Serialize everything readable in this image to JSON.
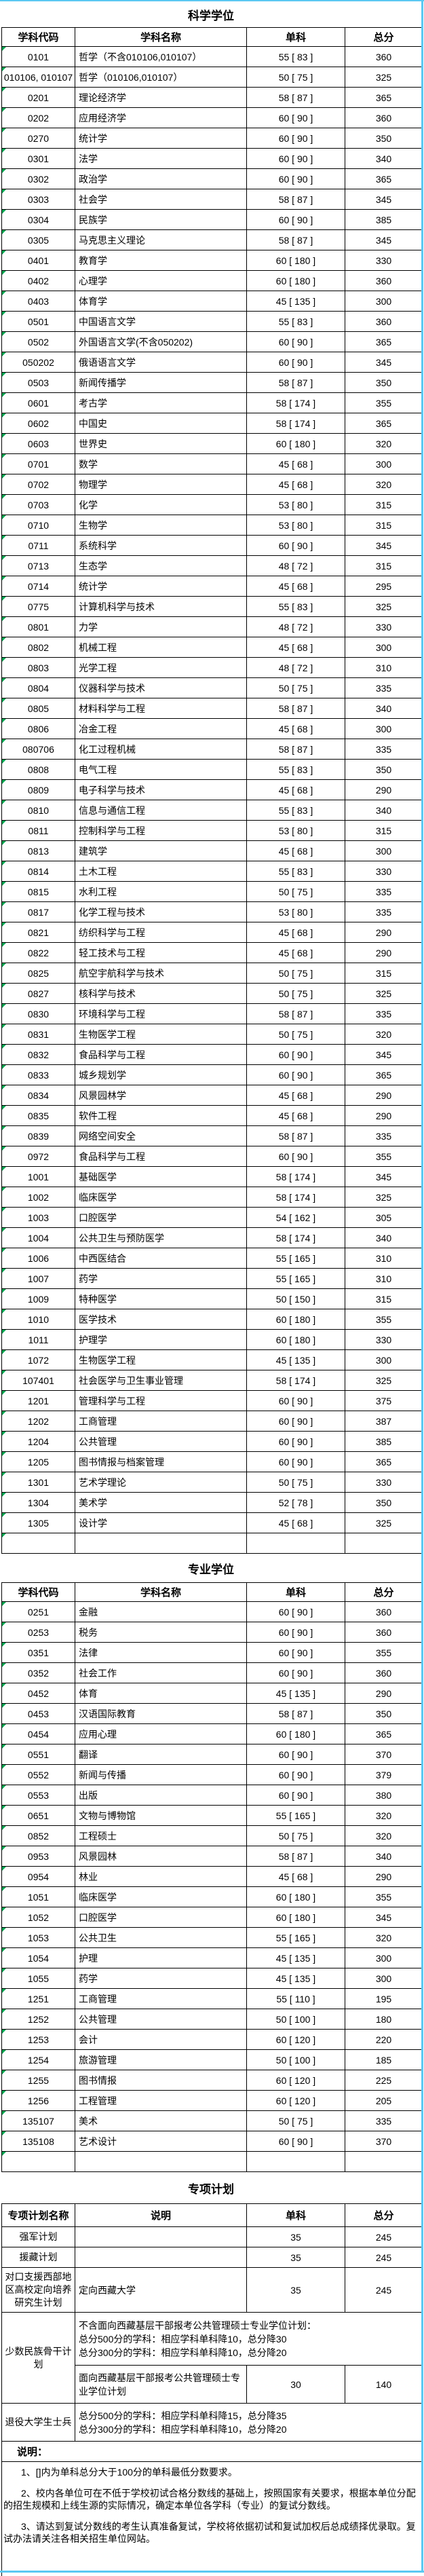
{
  "colors": {
    "accent_cyan": "#5bc8f2",
    "triangle_green": "#00a651"
  },
  "science": {
    "title": "科学学位",
    "headers": [
      "学科代码",
      "学科名称",
      "单科",
      "总分"
    ],
    "rows": [
      [
        "0101",
        "哲学（不含010106,010107）",
        "55 [ 83 ]",
        "360"
      ],
      [
        "010106, 010107",
        "哲学（010106,010107）",
        "50 [ 75 ]",
        "325"
      ],
      [
        "0201",
        "理论经济学",
        "58 [ 87 ]",
        "365"
      ],
      [
        "0202",
        "应用经济学",
        "60 [ 90 ]",
        "360"
      ],
      [
        "0270",
        "统计学",
        "60 [ 90 ]",
        "350"
      ],
      [
        "0301",
        "法学",
        "60 [ 90 ]",
        "340"
      ],
      [
        "0302",
        "政治学",
        "60 [ 90 ]",
        "365"
      ],
      [
        "0303",
        "社会学",
        "58 [ 87 ]",
        "345"
      ],
      [
        "0304",
        "民族学",
        "60 [ 90 ]",
        "385"
      ],
      [
        "0305",
        "马克思主义理论",
        "58 [ 87 ]",
        "345"
      ],
      [
        "0401",
        "教育学",
        "60 [ 180 ]",
        "330"
      ],
      [
        "0402",
        "心理学",
        "60 [ 180 ]",
        "360"
      ],
      [
        "0403",
        "体育学",
        "45 [ 135 ]",
        "300"
      ],
      [
        "0501",
        "中国语言文学",
        "55 [ 83 ]",
        "360"
      ],
      [
        "0502",
        "外国语言文学(不含050202)",
        "60 [ 90 ]",
        "365"
      ],
      [
        "050202",
        "俄语语言文学",
        "60 [ 90 ]",
        "345"
      ],
      [
        "0503",
        "新闻传播学",
        "58 [ 87 ]",
        "350"
      ],
      [
        "0601",
        "考古学",
        "58 [ 174 ]",
        "355"
      ],
      [
        "0602",
        "中国史",
        "58 [ 174 ]",
        "365"
      ],
      [
        "0603",
        "世界史",
        "60 [ 180 ]",
        "320"
      ],
      [
        "0701",
        "数学",
        "45 [ 68 ]",
        "300"
      ],
      [
        "0702",
        "物理学",
        "45 [ 68 ]",
        "320"
      ],
      [
        "0703",
        "化学",
        "53 [ 80 ]",
        "315"
      ],
      [
        "0710",
        "生物学",
        "53 [ 80 ]",
        "315"
      ],
      [
        "0711",
        "系统科学",
        "60 [ 90 ]",
        "345"
      ],
      [
        "0713",
        "生态学",
        "48 [ 72 ]",
        "315"
      ],
      [
        "0714",
        "统计学",
        "45 [ 68 ]",
        "295"
      ],
      [
        "0775",
        "计算机科学与技术",
        "55 [ 83 ]",
        "325"
      ],
      [
        "0801",
        "力学",
        "48 [ 72 ]",
        "330"
      ],
      [
        "0802",
        "机械工程",
        "45 [ 68 ]",
        "300"
      ],
      [
        "0803",
        "光学工程",
        "48 [ 72 ]",
        "310"
      ],
      [
        "0804",
        "仪器科学与技术",
        "50 [ 75 ]",
        "335"
      ],
      [
        "0805",
        "材料科学与工程",
        "58 [ 87 ]",
        "340"
      ],
      [
        "0806",
        "冶金工程",
        "45 [ 68 ]",
        "300"
      ],
      [
        "080706",
        "化工过程机械",
        "58 [ 87 ]",
        "335"
      ],
      [
        "0808",
        "电气工程",
        "55 [ 83 ]",
        "350"
      ],
      [
        "0809",
        "电子科学与技术",
        "45 [ 68 ]",
        "290"
      ],
      [
        "0810",
        "信息与通信工程",
        "55 [ 83 ]",
        "340"
      ],
      [
        "0811",
        "控制科学与工程",
        "53 [ 80 ]",
        "315"
      ],
      [
        "0813",
        "建筑学",
        "45 [ 68 ]",
        "300"
      ],
      [
        "0814",
        "土木工程",
        "55 [ 83 ]",
        "330"
      ],
      [
        "0815",
        "水利工程",
        "50 [ 75 ]",
        "335"
      ],
      [
        "0817",
        "化学工程与技术",
        "53 [ 80 ]",
        "335"
      ],
      [
        "0821",
        "纺织科学与工程",
        "45 [ 68 ]",
        "290"
      ],
      [
        "0822",
        "轻工技术与工程",
        "45 [ 68 ]",
        "290"
      ],
      [
        "0825",
        "航空宇航科学与技术",
        "50 [ 75 ]",
        "315"
      ],
      [
        "0827",
        "核科学与技术",
        "50 [ 75 ]",
        "325"
      ],
      [
        "0830",
        "环境科学与工程",
        "58 [ 87 ]",
        "335"
      ],
      [
        "0831",
        "生物医学工程",
        "50 [ 75 ]",
        "320"
      ],
      [
        "0832",
        "食品科学与工程",
        "60 [ 90 ]",
        "345"
      ],
      [
        "0833",
        "城乡规划学",
        "60 [ 90 ]",
        "365"
      ],
      [
        "0834",
        "风景园林学",
        "45 [ 68 ]",
        "290"
      ],
      [
        "0835",
        "软件工程",
        "45 [ 68 ]",
        "290"
      ],
      [
        "0839",
        "网络空间安全",
        "58 [ 87 ]",
        "335"
      ],
      [
        "0972",
        "食品科学与工程",
        "60 [ 90 ]",
        "355"
      ],
      [
        "1001",
        "基础医学",
        "58 [ 174 ]",
        "345"
      ],
      [
        "1002",
        "临床医学",
        "58 [ 174 ]",
        "325"
      ],
      [
        "1003",
        "口腔医学",
        "54 [ 162 ]",
        "305"
      ],
      [
        "1004",
        "公共卫生与预防医学",
        "58 [ 174 ]",
        "340"
      ],
      [
        "1006",
        "中西医结合",
        "55 [ 165 ]",
        "310"
      ],
      [
        "1007",
        "药学",
        "55 [ 165 ]",
        "310"
      ],
      [
        "1009",
        "特种医学",
        "50 [ 150 ]",
        "315"
      ],
      [
        "1010",
        "医学技术",
        "60 [ 180 ]",
        "355"
      ],
      [
        "1011",
        "护理学",
        "60 [ 180 ]",
        "330"
      ],
      [
        "1072",
        "生物医学工程",
        "45 [ 135 ]",
        "300"
      ],
      [
        "107401",
        "社会医学与卫生事业管理",
        "58 [ 174 ]",
        "325"
      ],
      [
        "1201",
        "管理科学与工程",
        "60 [ 90 ]",
        "375"
      ],
      [
        "1202",
        "工商管理",
        "60 [ 90 ]",
        "387"
      ],
      [
        "1204",
        "公共管理",
        "60 [ 90 ]",
        "385"
      ],
      [
        "1205",
        "图书情报与档案管理",
        "60 [ 90 ]",
        "365"
      ],
      [
        "1301",
        "艺术学理论",
        "50 [ 75 ]",
        "330"
      ],
      [
        "1304",
        "美术学",
        "52 [ 78 ]",
        "350"
      ],
      [
        "1305",
        "设计学",
        "45 [ 68 ]",
        "325"
      ],
      [
        "",
        "",
        "",
        ""
      ]
    ]
  },
  "professional": {
    "title": "专业学位",
    "headers": [
      "学科代码",
      "学科名称",
      "单科",
      "总分"
    ],
    "rows": [
      [
        "0251",
        "金融",
        "60 [ 90 ]",
        "360"
      ],
      [
        "0253",
        "税务",
        "60 [ 90 ]",
        "360"
      ],
      [
        "0351",
        "法律",
        "60 [ 90 ]",
        "355"
      ],
      [
        "0352",
        "社会工作",
        "60 [ 90 ]",
        "360"
      ],
      [
        "0452",
        "体育",
        "45 [ 135 ]",
        "290"
      ],
      [
        "0453",
        "汉语国际教育",
        "58 [ 87 ]",
        "350"
      ],
      [
        "0454",
        "应用心理",
        "60 [ 180 ]",
        "365"
      ],
      [
        "0551",
        "翻译",
        "60 [ 90 ]",
        "370"
      ],
      [
        "0552",
        "新闻与传播",
        "60 [ 90 ]",
        "379"
      ],
      [
        "0553",
        "出版",
        "60 [ 90 ]",
        "380"
      ],
      [
        "0651",
        "文物与博物馆",
        "55 [ 165 ]",
        "320"
      ],
      [
        "0852",
        "工程硕士",
        "50 [ 75 ]",
        "320"
      ],
      [
        "0953",
        "风景园林",
        "58 [ 87 ]",
        "340"
      ],
      [
        "0954",
        "林业",
        "45 [ 68 ]",
        "290"
      ],
      [
        "1051",
        "临床医学",
        "60 [ 180 ]",
        "355"
      ],
      [
        "1052",
        "口腔医学",
        "60 [ 180 ]",
        "345"
      ],
      [
        "1053",
        "公共卫生",
        "55 [ 165 ]",
        "320"
      ],
      [
        "1054",
        "护理",
        "45 [ 135 ]",
        "300"
      ],
      [
        "1055",
        "药学",
        "45 [ 135 ]",
        "300"
      ],
      [
        "1251",
        "工商管理",
        "55 [ 110 ]",
        "195"
      ],
      [
        "1252",
        "公共管理",
        "50 [ 100 ]",
        "180"
      ],
      [
        "1253",
        "会计",
        "60 [ 120 ]",
        "220"
      ],
      [
        "1254",
        "旅游管理",
        "50 [ 100 ]",
        "185"
      ],
      [
        "1255",
        "图书情报",
        "60 [ 120 ]",
        "225"
      ],
      [
        "1256",
        "工程管理",
        "60 [ 120 ]",
        "205"
      ],
      [
        "135107",
        "美术",
        "50 [ 75 ]",
        "335"
      ],
      [
        "135108",
        "艺术设计",
        "60 [ 90 ]",
        "370"
      ],
      [
        "",
        "",
        "",
        ""
      ]
    ]
  },
  "special": {
    "title": "专项计划",
    "headers": [
      "专项计划名称",
      "说明",
      "单科",
      "总分"
    ],
    "row_qiangjun": {
      "name": "强军计划",
      "desc": "",
      "danke": "35",
      "total": "245"
    },
    "row_yuanzang": {
      "name": "援藏计划",
      "desc": "",
      "danke": "35",
      "total": "245"
    },
    "row_duikou": {
      "name": "对口支援西部地区高校定向培养研究生计划",
      "desc": "定向西藏大学",
      "danke": "35",
      "total": "245"
    },
    "row_gugan": {
      "name": "少数民族骨干计划",
      "desc_main": "不含面向西藏基层干部报考公共管理硕士专业学位计划：\n总分500分的学科：相应学科单科降10，总分降30\n总分300分的学科：相应学科单科降10，总分降20",
      "desc_sub": "面向西藏基层干部报考公共管理硕士专业学位计划",
      "danke_sub": "30",
      "total_sub": "140"
    },
    "row_tuiyi": {
      "name": "退役大学生士兵",
      "desc": "总分500分的学科：相应学科单科降15，总分降35\n总分300分的学科：相应学科单科降10，总分降20"
    }
  },
  "notes": {
    "label": "说明：",
    "items": [
      "1、[]内为单科总分大于100分的单科最低分数要求。",
      "2、校内各单位可在不低于学校初试合格分数线的基础上，按照国家有关要求，根据本单位分配的招生规模和上线生源的实际情况，确定本单位各学科（专业）的复试分数线。",
      "3、请达到复试分数线的考生认真准备复试，学校将依据初试和复试加权后总成绩择优录取。复试办法请关注各相关招生单位网站。"
    ]
  }
}
